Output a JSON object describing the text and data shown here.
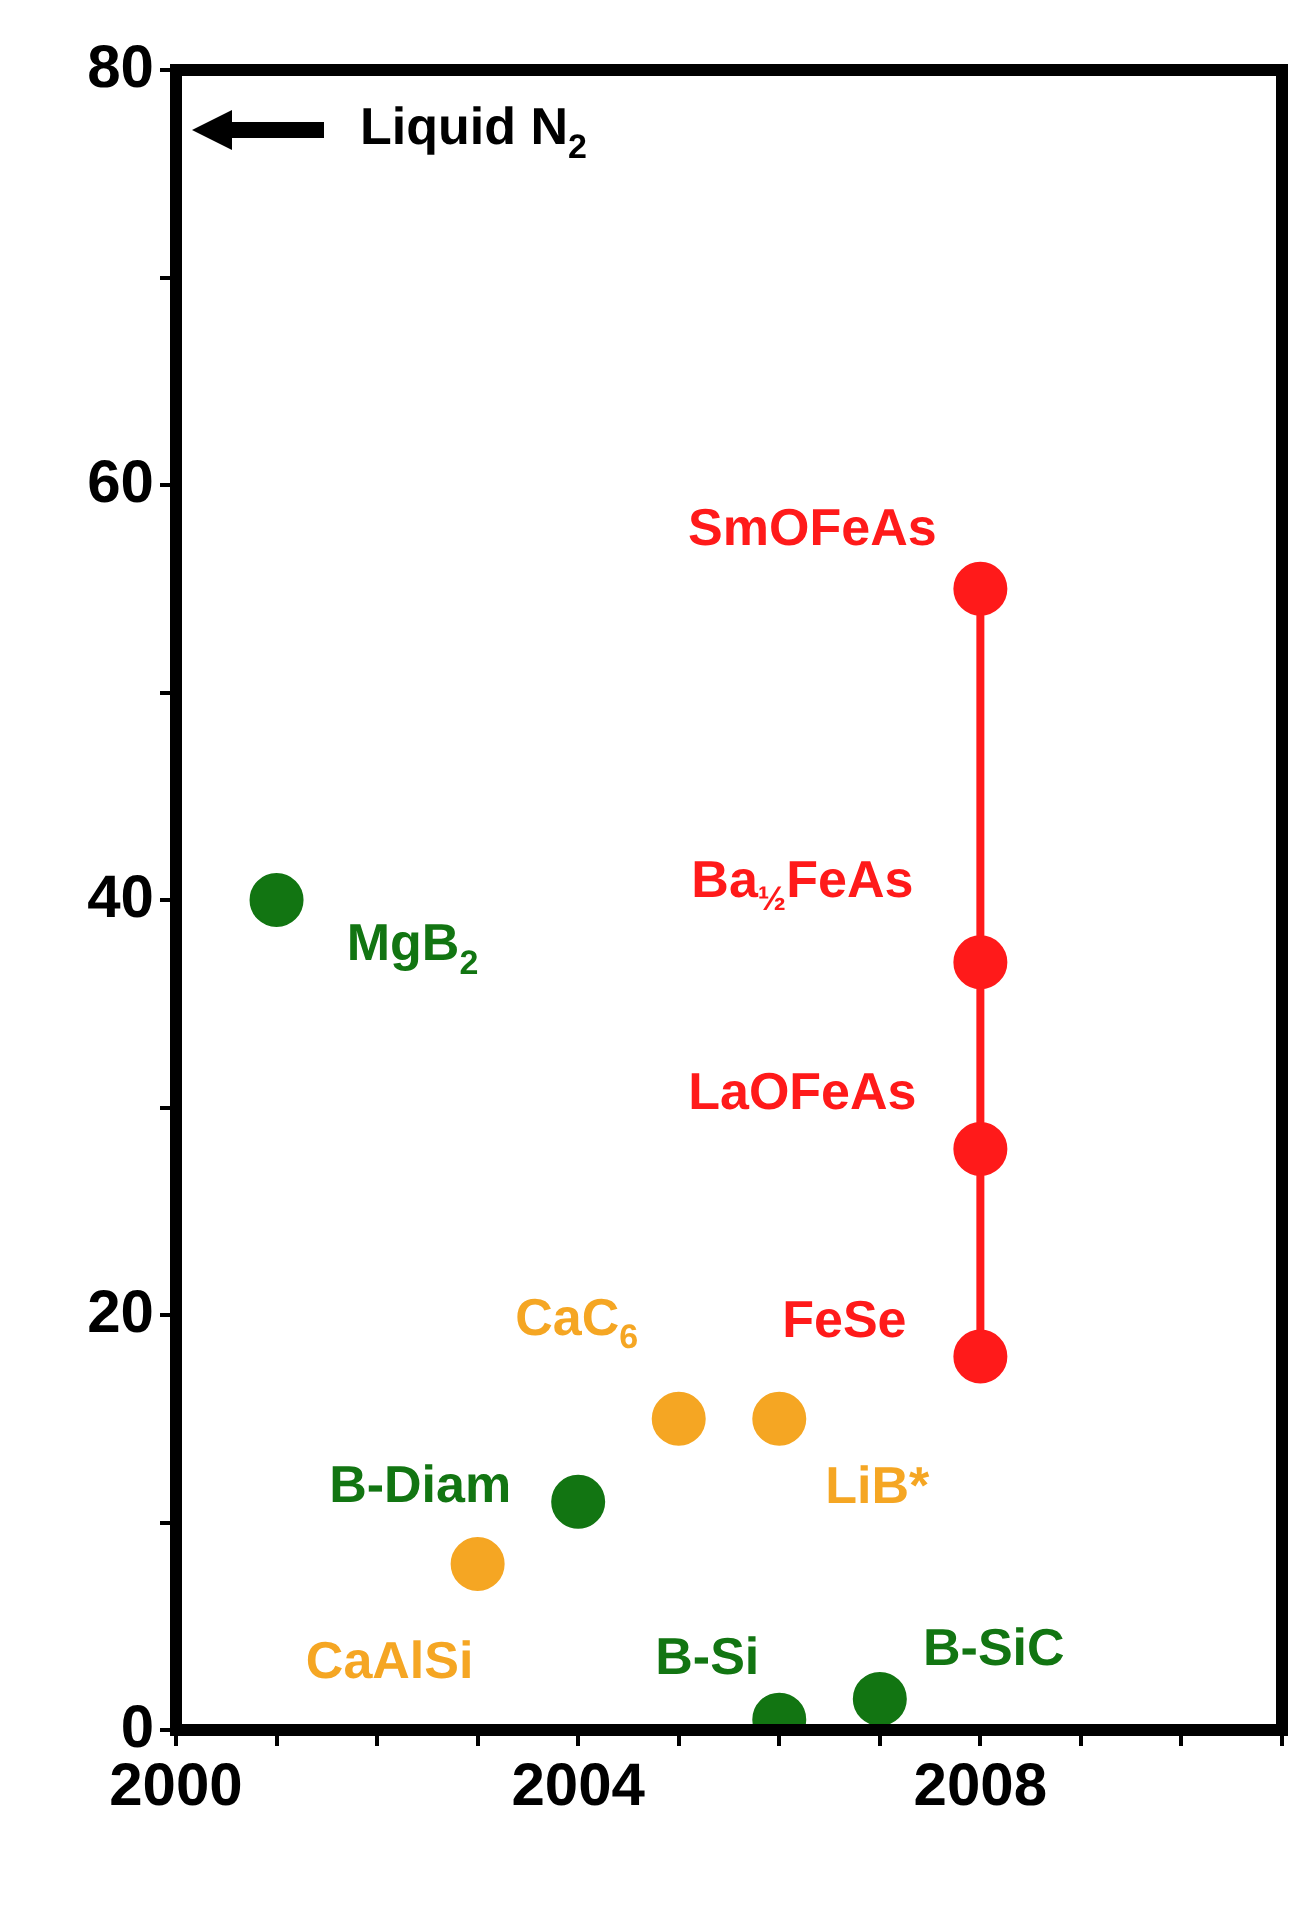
{
  "chart_data": {
    "type": "scatter",
    "xlim": [
      2000,
      2011
    ],
    "ylim": [
      0,
      80
    ],
    "xticks": [
      2000,
      {
        "value": 2001,
        "label": null
      },
      {
        "value": 2002,
        "label": null
      },
      {
        "value": 2003,
        "label": null
      },
      2004,
      {
        "value": 2005,
        "label": null
      },
      {
        "value": 2006,
        "label": null
      },
      {
        "value": 2007,
        "label": null
      },
      2008,
      {
        "value": 2009,
        "label": null
      },
      {
        "value": 2010,
        "label": null
      },
      {
        "value": 2011,
        "label": null
      }
    ],
    "yticks": [
      0,
      {
        "value": 10,
        "label": null
      },
      20,
      {
        "value": 30,
        "label": null
      },
      40,
      {
        "value": 50,
        "label": null
      },
      60,
      {
        "value": 70,
        "label": null
      },
      80
    ],
    "grid": false,
    "legend": false,
    "marker": "circle",
    "series": [
      {
        "type": "scatter",
        "color": "#127512",
        "x": [
          2001,
          2004,
          2006,
          2007
        ],
        "values": [
          40,
          11,
          0.5,
          1.5
        ]
      },
      {
        "type": "scatter",
        "color": "#f5a623",
        "x": [
          2003,
          2005,
          2006
        ],
        "values": [
          8,
          15,
          15
        ]
      },
      {
        "type": "line",
        "color": "#ff1a1a",
        "x": [
          2008,
          2008,
          2008,
          2008
        ],
        "values": [
          18,
          28,
          37,
          55
        ]
      }
    ],
    "annotations": [
      "Liquid N$_{2}$",
      {
        "text": "MgB$_{2}$",
        "x": 2001,
        "y": 40
      },
      {
        "text": "CaAlSi",
        "x": 2003,
        "y": 8
      },
      {
        "text": "B-Diam",
        "x": 2004,
        "y": 11
      },
      {
        "text": "CaC$_{6}$",
        "x": 2005,
        "y": 15
      },
      {
        "text": "LiB*",
        "x": 2006,
        "y": 15
      },
      {
        "text": "B-Si",
        "x": 2006,
        "y": 0.5
      },
      {
        "text": "B-SiC",
        "x": 2007,
        "y": 1.5
      },
      {
        "text": "FeSe",
        "x": 2008,
        "y": 18
      },
      {
        "text": "LaOFeAs",
        "x": 2008,
        "y": 28
      },
      {
        "text": "Ba$_{½}$FeAs",
        "x": 2008,
        "y": 37
      },
      {
        "text": "SmOFeAs",
        "x": 2008,
        "y": 55
      }
    ]
  }
}
